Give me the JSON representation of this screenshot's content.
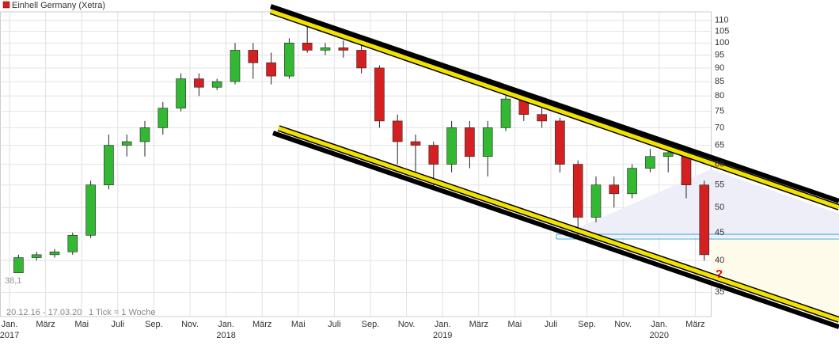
{
  "chart_data": {
    "type": "candlestick",
    "legend": "Einhell Germany (Xetra)",
    "legend_color": "#d42020",
    "x": [
      "2017-01",
      "2017-02",
      "2017-03",
      "2017-04",
      "2017-05",
      "2017-06",
      "2017-07",
      "2017-08",
      "2017-09",
      "2017-10",
      "2017-11",
      "2017-12",
      "2018-01",
      "2018-02",
      "2018-03",
      "2018-04",
      "2018-05",
      "2018-06",
      "2018-07",
      "2018-08",
      "2018-09",
      "2018-10",
      "2018-11",
      "2018-12",
      "2019-01",
      "2019-02",
      "2019-03",
      "2019-04",
      "2019-05",
      "2019-06",
      "2019-07",
      "2019-08",
      "2019-09",
      "2019-10",
      "2019-11",
      "2019-12",
      "2020-01",
      "2020-02",
      "2020-03"
    ],
    "open": [
      38,
      40.5,
      41,
      41.5,
      44.5,
      55,
      65,
      66,
      70,
      76,
      86,
      83,
      85,
      97,
      92,
      87,
      100,
      97,
      98,
      97,
      90,
      72,
      66,
      65,
      60,
      70,
      62,
      70,
      79,
      74,
      72,
      60,
      48,
      55,
      53,
      59,
      62,
      63,
      55
    ],
    "high": [
      41,
      41.5,
      42,
      45,
      56,
      68,
      68,
      72,
      78,
      88,
      88,
      86,
      100,
      100,
      96,
      102,
      108,
      100,
      101,
      99,
      91,
      74,
      68,
      66,
      72,
      72,
      72,
      80,
      80,
      76,
      73,
      61,
      57,
      57,
      60,
      64,
      65,
      64,
      56
    ],
    "low": [
      38,
      40,
      40.5,
      41,
      44,
      54,
      62,
      62,
      68,
      75,
      80,
      82,
      84,
      86,
      84,
      86,
      96,
      95,
      94,
      88,
      70,
      60,
      58,
      54,
      58,
      59,
      57,
      69,
      72,
      70,
      58,
      44,
      47,
      50,
      52,
      58,
      58,
      52,
      40
    ],
    "close": [
      40.5,
      41,
      41.5,
      44.5,
      55,
      65,
      66,
      70,
      76,
      86,
      83,
      85,
      97,
      92,
      87,
      100,
      97,
      98,
      97,
      90,
      72,
      66,
      65,
      60,
      70,
      62,
      70,
      79,
      74,
      72,
      60,
      48,
      55,
      53,
      59,
      62,
      63,
      55,
      41
    ],
    "up_color": "#33b833",
    "down_color": "#d42020",
    "log_scale": true,
    "grid": true,
    "ylim": [
      31.6,
      114
    ],
    "yticks": [
      35,
      40,
      45,
      50,
      55,
      60,
      65,
      70,
      75,
      80,
      85,
      90,
      95,
      100,
      105,
      110
    ],
    "xticks": [
      {
        "value": "2017-01",
        "label": "Jan."
      },
      {
        "value": "2017-03",
        "label": "März"
      },
      {
        "value": "2017-05",
        "label": "Mai"
      },
      {
        "value": "2017-07",
        "label": "Juli"
      },
      {
        "value": "2017-09",
        "label": "Sep."
      },
      {
        "value": "2017-11",
        "label": "Nov."
      },
      {
        "value": "2018-01",
        "label": "Jan."
      },
      {
        "value": "2018-03",
        "label": "März"
      },
      {
        "value": "2018-05",
        "label": "Mai"
      },
      {
        "value": "2018-07",
        "label": "Juli"
      },
      {
        "value": "2018-09",
        "label": "Sep."
      },
      {
        "value": "2018-11",
        "label": "Nov."
      },
      {
        "value": "2019-01",
        "label": "Jan."
      },
      {
        "value": "2019-03",
        "label": "März"
      },
      {
        "value": "2019-05",
        "label": "Mai"
      },
      {
        "value": "2019-07",
        "label": "Juli"
      },
      {
        "value": "2019-09",
        "label": "Sep."
      },
      {
        "value": "2019-11",
        "label": "Nov."
      },
      {
        "value": "2020-01",
        "label": "Jan."
      },
      {
        "value": "2020-03",
        "label": "März"
      }
    ],
    "year_labels": [
      {
        "value": "2017-01",
        "label": "2017"
      },
      {
        "value": "2018-01",
        "label": "2018"
      },
      {
        "value": "2019-01",
        "label": "2019"
      },
      {
        "value": "2020-01",
        "label": "2020"
      }
    ],
    "start_value_label": {
      "value": 38.1,
      "label": "38,1"
    },
    "period_label": "20.12.16 - 17.03.20",
    "tick_label": "1 Tick = 1 Woche",
    "question_mark": "?"
  }
}
